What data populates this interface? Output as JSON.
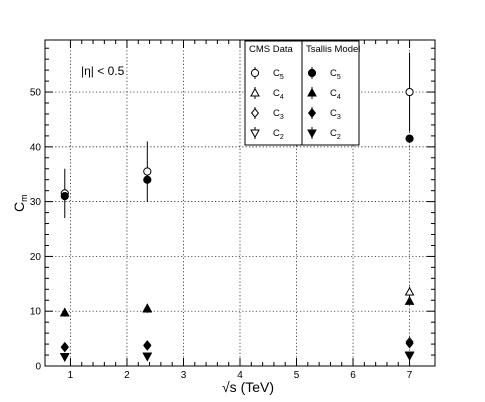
{
  "chart_data": {
    "type": "scatter",
    "xlabel": "√s (TeV)",
    "ylabel": "C",
    "ylabel_sub": "m",
    "xlim": [
      0.55,
      7.45
    ],
    "ylim": [
      0,
      59.5
    ],
    "xticks": [
      1,
      2,
      3,
      4,
      5,
      6,
      7
    ],
    "yticks": [
      0,
      10,
      20,
      30,
      40,
      50
    ],
    "grid": true,
    "annotation": "|η| < 0.5",
    "legends": [
      {
        "title": "CMS  Data",
        "entries": [
          {
            "label": "C",
            "sub": "5",
            "marker": "open-circle"
          },
          {
            "label": "C",
            "sub": "4",
            "marker": "open-triangle-up"
          },
          {
            "label": "C",
            "sub": "3",
            "marker": "open-diamond"
          },
          {
            "label": "C",
            "sub": "2",
            "marker": "open-triangle-down"
          }
        ]
      },
      {
        "title": "Tsallis Model",
        "entries": [
          {
            "label": "C",
            "sub": "5",
            "marker": "filled-circle"
          },
          {
            "label": "C",
            "sub": "4",
            "marker": "filled-triangle-up"
          },
          {
            "label": "C",
            "sub": "3",
            "marker": "filled-diamond"
          },
          {
            "label": "C",
            "sub": "2",
            "marker": "filled-triangle-down"
          }
        ]
      }
    ],
    "series": [
      {
        "name": "CMS Data C5",
        "marker": "open-circle",
        "x": [
          0.9,
          2.36,
          7.0
        ],
        "y": [
          31.5,
          35.5,
          50.0
        ],
        "err": [
          4.5,
          5.5,
          7.2
        ]
      },
      {
        "name": "CMS Data C4",
        "marker": "open-triangle-up",
        "x": [
          0.9,
          2.36,
          7.0
        ],
        "y": [
          9.7,
          10.5,
          13.5
        ],
        "err": [
          0.7,
          0.8,
          1.0
        ]
      },
      {
        "name": "CMS Data C3",
        "marker": "open-diamond",
        "x": [
          0.9,
          2.36,
          7.0
        ],
        "y": [
          3.5,
          3.8,
          4.4
        ],
        "err": [
          0.2,
          0.2,
          0.3
        ]
      },
      {
        "name": "CMS Data C2",
        "marker": "open-triangle-down",
        "x": [
          0.9,
          2.36,
          7.0
        ],
        "y": [
          1.7,
          1.8,
          2.0
        ],
        "err": [
          0.05,
          0.05,
          0.05
        ]
      },
      {
        "name": "Tsallis Model C5",
        "marker": "filled-circle",
        "x": [
          0.9,
          2.36,
          7.0
        ],
        "y": [
          31.0,
          34.0,
          41.5
        ],
        "err": [
          0,
          0,
          0
        ]
      },
      {
        "name": "Tsallis Model C4",
        "marker": "filled-triangle-up",
        "x": [
          0.9,
          2.36,
          7.0
        ],
        "y": [
          9.7,
          10.4,
          11.8
        ],
        "err": [
          0,
          0,
          0
        ]
      },
      {
        "name": "Tsallis Model C3",
        "marker": "filled-diamond",
        "x": [
          0.9,
          2.36,
          7.0
        ],
        "y": [
          3.4,
          3.7,
          4.1
        ],
        "err": [
          0,
          0,
          0
        ]
      },
      {
        "name": "Tsallis Model C2",
        "marker": "filled-triangle-down",
        "x": [
          0.9,
          2.36,
          7.0
        ],
        "y": [
          1.7,
          1.8,
          1.9
        ],
        "err": [
          0,
          0,
          0
        ]
      }
    ]
  }
}
